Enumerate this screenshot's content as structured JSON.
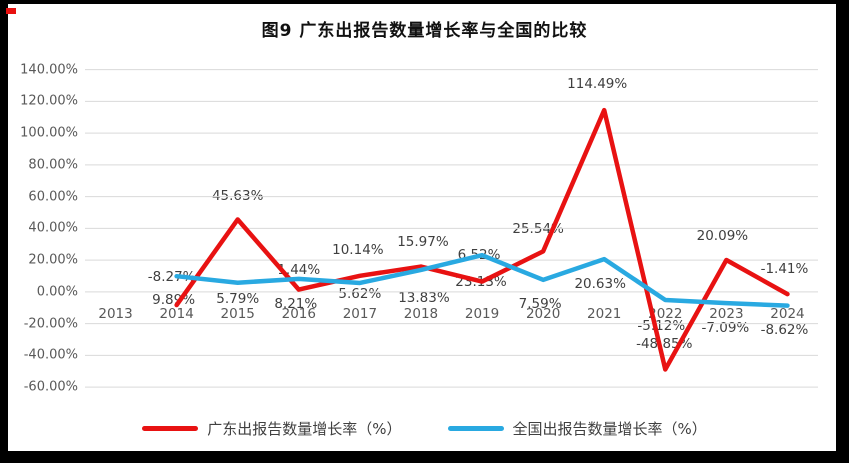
{
  "chart_data": {
    "type": "line",
    "title": "图9  广东出报告数量增长率与全国的比较",
    "xlabel": "",
    "ylabel": "",
    "categories": [
      "2013",
      "2014",
      "2015",
      "2016",
      "2017",
      "2018",
      "2019",
      "2020",
      "2021",
      "2022",
      "2023",
      "2024"
    ],
    "series": [
      {
        "name": "广东出报告数量增长率（%）",
        "color": "#E81212",
        "values": [
          null,
          -8.27,
          45.63,
          1.44,
          10.14,
          15.97,
          6.52,
          25.54,
          114.49,
          -48.85,
          20.09,
          -1.41
        ],
        "labels": [
          "",
          "-8.27%",
          "45.63%",
          "1.44%",
          "10.14%",
          "15.97%",
          "6.52%",
          "25.54%",
          "114.49%",
          "-48.85%",
          "20.09%",
          "-1.41%"
        ]
      },
      {
        "name": "全国出报告数量增长率（%）",
        "color": "#29A9E1",
        "values": [
          null,
          9.89,
          5.79,
          8.21,
          5.62,
          13.83,
          23.13,
          7.59,
          20.63,
          -5.12,
          -7.09,
          -8.62
        ],
        "labels": [
          "",
          "9.89%",
          "5.79%",
          "8.21%",
          "5.62%",
          "13.83%",
          "23.13%",
          "7.59%",
          "20.63%",
          "-5.12%",
          "-7.09%",
          "-8.62%"
        ]
      }
    ],
    "y_axis": {
      "min": -60,
      "max": 140,
      "step": 20,
      "tick_labels": [
        "140.00%",
        "120.00%",
        "100.00%",
        "80.00%",
        "60.00%",
        "40.00%",
        "20.00%",
        "0.00%",
        "-20.00%",
        "-40.00%",
        "-60.00%"
      ]
    },
    "ylim": [
      -60,
      140
    ],
    "grid": true,
    "legend_position": "bottom"
  }
}
